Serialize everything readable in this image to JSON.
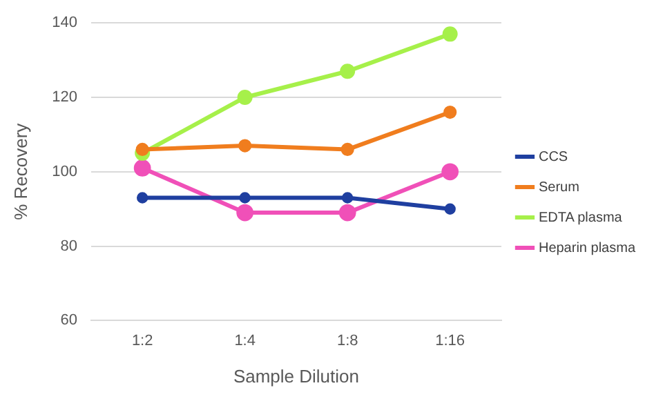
{
  "chart_data": {
    "type": "line",
    "xlabel": "Sample Dilution",
    "ylabel": "% Recovery",
    "categories": [
      "1:2",
      "1:4",
      "1:8",
      "1:16"
    ],
    "series": [
      {
        "name": "CCS",
        "color": "#1f3fa0",
        "values": [
          93,
          93,
          93,
          90
        ]
      },
      {
        "name": "Serum",
        "color": "#f07d1e",
        "values": [
          106,
          107,
          106,
          116
        ]
      },
      {
        "name": "EDTA plasma",
        "color": "#a6f04a",
        "values": [
          105,
          120,
          127,
          137
        ]
      },
      {
        "name": "Heparin plasma",
        "color": "#f050b8",
        "values": [
          101,
          89,
          89,
          100
        ]
      }
    ],
    "ylim": [
      60,
      140
    ],
    "yticks": [
      60,
      80,
      100,
      120,
      140
    ],
    "grid": "y",
    "legend": "right",
    "marker": "circle",
    "line_style": "solid"
  }
}
